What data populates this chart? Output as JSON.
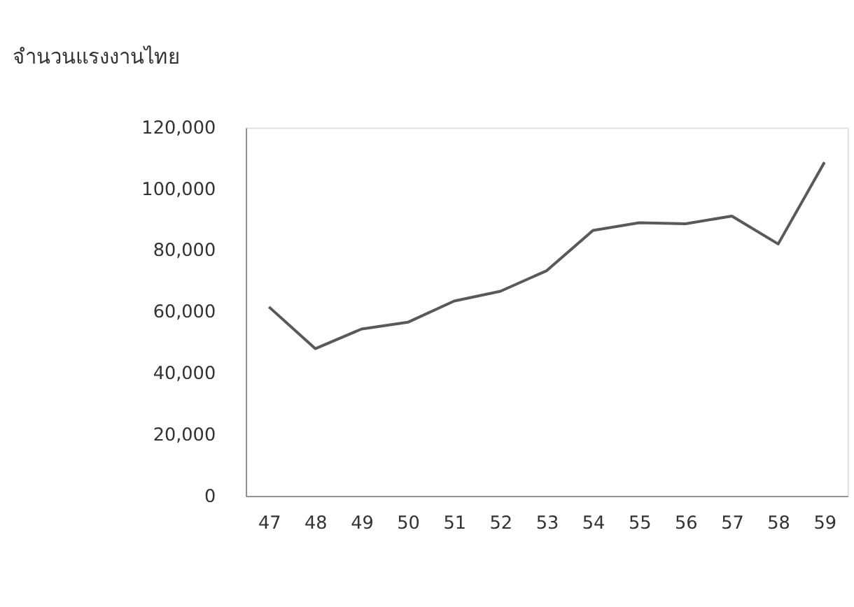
{
  "chart_data": {
    "type": "line",
    "title": "จำนวนแรงงานไทย",
    "categories": [
      "47",
      "48",
      "49",
      "50",
      "51",
      "52",
      "53",
      "54",
      "55",
      "56",
      "57",
      "58",
      "59"
    ],
    "series": [
      {
        "color": "#595959",
        "values": [
          61600,
          48000,
          54400,
          56600,
          63500,
          66700,
          73400,
          86500,
          89000,
          88700,
          91200,
          82100,
          108700
        ]
      }
    ],
    "ylim": [
      0,
      120000
    ],
    "yticks": [
      {
        "value": 0,
        "label": "0"
      },
      {
        "value": 20000,
        "label": "20,000"
      },
      {
        "value": 40000,
        "label": "40,000"
      },
      {
        "value": 60000,
        "label": "60,000"
      },
      {
        "value": 80000,
        "label": "80,000"
      },
      {
        "value": 100000,
        "label": "100,000"
      },
      {
        "value": 120000,
        "label": "120,000"
      }
    ],
    "grid": false,
    "legend": false
  }
}
